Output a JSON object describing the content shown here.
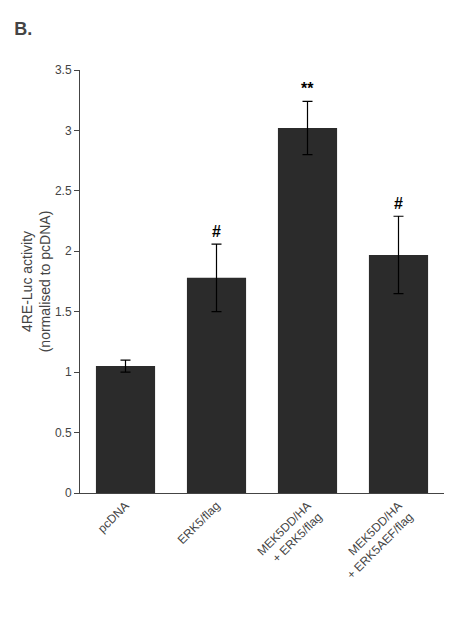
{
  "chart_data": {
    "type": "bar",
    "title": "B.",
    "categories": [
      "pcDNA",
      "ERK5/flag",
      "MEK5DD/HA\n+ ERK5/flag",
      "MEK5DD/HA\n+ ERK5AEF/flag"
    ],
    "values": [
      1.05,
      1.78,
      3.02,
      1.97
    ],
    "errors": [
      0.05,
      0.28,
      0.22,
      0.32
    ],
    "annotations": [
      null,
      "#",
      "**",
      "#"
    ],
    "color": "#2b2b2b",
    "ylabel": "4RE-Luc activity\n(normalised to pcDNA)",
    "ylim": [
      0,
      3.5
    ],
    "yticks": [
      0,
      0.5,
      1,
      1.5,
      2,
      2.5,
      3,
      3.5
    ],
    "grid": false
  }
}
